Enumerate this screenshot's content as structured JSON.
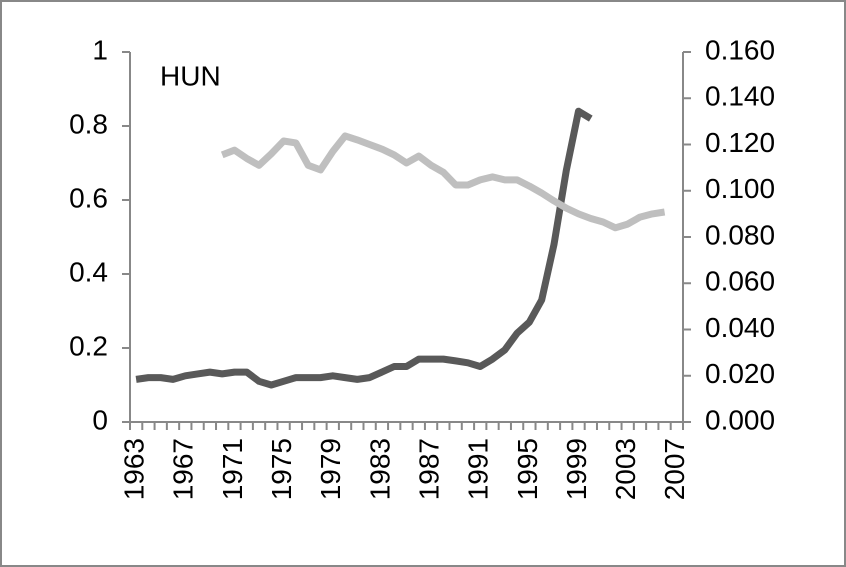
{
  "chart_data": {
    "type": "line",
    "annotation": "HUN",
    "categories": [
      "1963",
      null,
      null,
      null,
      "1967",
      null,
      null,
      null,
      "1971",
      null,
      null,
      null,
      "1975",
      null,
      null,
      null,
      "1979",
      null,
      null,
      null,
      "1983",
      null,
      null,
      null,
      "1987",
      null,
      null,
      null,
      "1991",
      null,
      null,
      null,
      "1995",
      null,
      null,
      null,
      "1999",
      null,
      null,
      null,
      "2003",
      null,
      null,
      null,
      "2007"
    ],
    "ylim": [
      0,
      1
    ],
    "yticks": [
      0,
      0.2,
      0.4,
      0.6,
      0.8,
      1
    ],
    "y2lim": [
      0,
      0.16
    ],
    "y2ticks": [
      {
        "value": 0,
        "label": "0.000"
      },
      {
        "value": 0.02,
        "label": "0.020"
      },
      {
        "value": 0.04,
        "label": "0.040"
      },
      {
        "value": 0.06,
        "label": "0.060"
      },
      {
        "value": 0.08,
        "label": "0.080"
      },
      {
        "value": 0.1,
        "label": "0.100"
      },
      {
        "value": 0.12,
        "label": "0.120"
      },
      {
        "value": 0.14,
        "label": "0.140"
      },
      {
        "value": 0.16,
        "label": "0.160"
      }
    ],
    "series": [
      {
        "color": "#595959",
        "values": [
          0.115,
          0.12,
          0.12,
          0.115,
          0.125,
          0.13,
          0.135,
          0.13,
          0.135,
          0.135,
          0.11,
          0.1,
          0.11,
          0.12,
          0.12,
          0.12,
          0.125,
          0.12,
          0.115,
          0.12,
          0.135,
          0.15,
          0.15,
          0.17,
          0.17,
          0.17,
          0.165,
          0.16,
          0.15,
          0.17,
          0.195,
          0.24,
          0.27,
          0.33,
          0.48,
          0.68,
          0.84,
          0.82,
          null,
          null,
          null,
          null,
          null,
          null,
          null
        ]
      },
      {
        "color": "#bfbfbf",
        "axis": "y2",
        "values": [
          null,
          null,
          null,
          null,
          null,
          null,
          null,
          0.1155,
          0.1176,
          0.114,
          0.111,
          0.116,
          0.1215,
          0.1207,
          0.111,
          0.109,
          0.117,
          0.1237,
          0.122,
          0.12,
          0.118,
          0.1155,
          0.112,
          0.115,
          0.111,
          0.108,
          0.1025,
          0.1025,
          0.1047,
          0.106,
          0.1047,
          0.1047,
          0.102,
          0.099,
          0.0956,
          0.0925,
          0.09,
          0.088,
          0.0865,
          0.084,
          0.0856,
          0.0886,
          0.09,
          0.0908,
          null
        ]
      }
    ]
  }
}
